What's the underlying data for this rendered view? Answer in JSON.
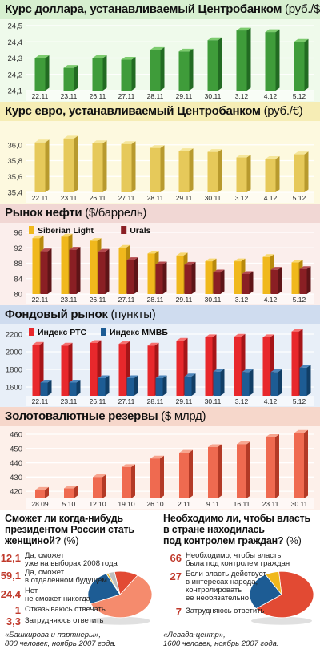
{
  "chart_data": [
    {
      "type": "bar",
      "title": "Курс доллара, устанавливаемый Центробанком",
      "unit": "(руб./$)",
      "categories": [
        "22.11",
        "23.11",
        "26.11",
        "27.11",
        "28.11",
        "29.11",
        "30.11",
        "3.12",
        "4.12",
        "5.12"
      ],
      "values": [
        24.3,
        24.24,
        24.3,
        24.29,
        24.35,
        24.34,
        24.41,
        24.47,
        24.46,
        24.4
      ],
      "ylim": [
        24.1,
        24.5
      ],
      "yticks": [
        24.1,
        24.2,
        24.3,
        24.4,
        24.5
      ],
      "colors": {
        "header": "#d7efd0",
        "bg": "#effaeb",
        "bar": "#3f9c3a",
        "bar_light": "#7ccb6e",
        "bar_dark": "#226b22"
      }
    },
    {
      "type": "bar",
      "title": "Курс евро, устанавливаемый Центробанком",
      "unit": "(руб./€)",
      "categories": [
        "22.11",
        "23.11",
        "26.11",
        "27.11",
        "28.11",
        "29.11",
        "30.11",
        "3.12",
        "4.12",
        "5.12"
      ],
      "values": [
        36.03,
        36.08,
        36.02,
        36.01,
        35.96,
        35.92,
        35.91,
        35.84,
        35.82,
        35.88
      ],
      "ylim": [
        35.4,
        36.2
      ],
      "yticks": [
        35.4,
        35.6,
        35.8,
        36.0
      ],
      "ytick_labels": [
        "35,4",
        "35,6",
        "35,8",
        "36,0"
      ],
      "colors": {
        "header": "#f6edb5",
        "bg": "#fdf9df",
        "bar": "#e6c95a",
        "bar_light": "#f5e69a",
        "bar_dark": "#b89a2e"
      }
    },
    {
      "type": "bar",
      "title": "Рынок нефти",
      "unit": "($/баррель)",
      "categories": [
        "22.11",
        "23.11",
        "26.11",
        "27.11",
        "28.11",
        "29.11",
        "30.11",
        "3.12",
        "4.12",
        "5.12"
      ],
      "series": [
        {
          "name": "Siberian Light",
          "values": [
            94.5,
            94.9,
            93.8,
            92.0,
            90.5,
            90.0,
            88.5,
            88.5,
            89.6,
            88.2
          ],
          "color": "#f0b81c",
          "light": "#f8d870",
          "dark": "#b88a0c"
        },
        {
          "name": "Urals",
          "values": [
            91.1,
            91.5,
            91.0,
            88.8,
            87.7,
            87.6,
            85.6,
            85.2,
            86.3,
            86.5
          ],
          "color": "#8a1f24",
          "light": "#b34a4e",
          "dark": "#5e1417"
        }
      ],
      "ylim": [
        80,
        96
      ],
      "yticks": [
        80,
        84,
        88,
        92,
        96
      ],
      "colors": {
        "header": "#f1d7d4",
        "bg": "#fbeeec"
      }
    },
    {
      "type": "bar",
      "title": "Фондовый рынок",
      "unit": "(пункты)",
      "categories": [
        "22.11",
        "23.11",
        "26.11",
        "27.11",
        "28.11",
        "29.11",
        "30.11",
        "3.12",
        "4.12",
        "5.12"
      ],
      "series": [
        {
          "name": "Индекс РТС",
          "values": [
            2080,
            2070,
            2100,
            2090,
            2070,
            2125,
            2165,
            2170,
            2165,
            2230
          ],
          "color": "#e8282c",
          "light": "#f6706f",
          "dark": "#a61518"
        },
        {
          "name": "Индекс ММВБ",
          "values": [
            1650,
            1650,
            1700,
            1700,
            1700,
            1720,
            1775,
            1770,
            1770,
            1820
          ],
          "color": "#1d5c94",
          "light": "#4d86bb",
          "dark": "#113e66"
        }
      ],
      "ylim": [
        1500,
        2200
      ],
      "yticks": [
        1600,
        1800,
        2000,
        2200
      ],
      "colors": {
        "header": "#cfdcef",
        "bg": "#e8eff8"
      }
    },
    {
      "type": "bar",
      "title": "Золотовалютные резервы",
      "unit": "($ млрд)",
      "categories": [
        "28.09",
        "5.10",
        "12.10",
        "19.10",
        "26.10",
        "2.11",
        "9.11",
        "16.11",
        "23.11",
        "30.11"
      ],
      "values": [
        421,
        422,
        430,
        437,
        443,
        447,
        451,
        453,
        458,
        461
      ],
      "ylim": [
        415,
        460
      ],
      "yticks": [
        420,
        430,
        440,
        450,
        460
      ],
      "colors": {
        "header": "#f6d7cb",
        "bg": "#fdf0ea",
        "bar": "#ef6a50",
        "bar_light": "#f7a58f",
        "bar_dark": "#b33a26"
      }
    },
    {
      "type": "pie",
      "title": "Сможет ли когда-нибудь президентом России стать женщиной?",
      "unit": "(%)",
      "values": [
        12.1,
        59.1,
        24.4,
        1.0,
        3.3
      ],
      "value_labels": [
        "12,1",
        "59,1",
        "24,4",
        "1",
        "3,3"
      ],
      "labels": [
        "Да, сможет уже на выборах 2008 года",
        "Да, сможет в отдаленном будущем",
        "Нет, не сможет никогда",
        "Отказываюсь отвечать",
        "Затрудняюсь ответить"
      ],
      "colors": [
        "#e24a33",
        "#f58b6d",
        "#1d5c94",
        "#f0b81c",
        "#bfbfbf"
      ],
      "source": "«Башкирова и партнеры», 800 человек, ноябрь 2007 года."
    },
    {
      "type": "pie",
      "title": "Необходимо ли, чтобы власть в стране находилась под контролем граждан?",
      "unit": "(%)",
      "values": [
        66,
        27,
        7
      ],
      "value_labels": [
        "66",
        "27",
        "7"
      ],
      "labels": [
        "Необходимо, чтобы власть была под контролем граждан",
        "Если власть действует в интересах народа, контролировать ее необязательно",
        "Затрудняюсь ответить"
      ],
      "colors": [
        "#e24a33",
        "#1d5c94",
        "#f0b81c"
      ],
      "source": "«Левада-центр», 1600 человек, ноябрь 2007 года."
    }
  ],
  "poll1": {
    "q1": "Сможет ли когда-нибудь",
    "q2": "президентом России стать",
    "q3": "женщиной?",
    "unit": "(%)",
    "items": [
      {
        "value": "12,1",
        "l1": "Да, сможет",
        "l2": "уже на выборах 2008 года"
      },
      {
        "value": "59,1",
        "l1": "Да, сможет",
        "l2": "в отдаленном будущем"
      },
      {
        "value": "24,4",
        "l1": "Нет,",
        "l2": "не сможет никогда"
      },
      {
        "value": "1",
        "l1": "Отказываюсь отвечать",
        "l2": ""
      },
      {
        "value": "3,3",
        "l1": "Затрудняюсь ответить",
        "l2": ""
      }
    ],
    "src1": "«Башкирова и партнеры»,",
    "src2": "800 человек, ноябрь 2007 года."
  },
  "poll2": {
    "q1": "Необходимо ли, чтобы власть",
    "q2": "в стране находилась",
    "q3": "под контролем граждан?",
    "unit": "(%)",
    "items": [
      {
        "value": "66",
        "l1": "Необходимо, чтобы власть",
        "l2": "была под контролем граждан",
        "l3": ""
      },
      {
        "value": "27",
        "l1": "Если власть действует",
        "l2": "в интересах народа,",
        "l3": "контролировать",
        "l4": "ее необязательно"
      },
      {
        "value": "7",
        "l1": "Затрудняюсь ответить",
        "l2": "",
        "l3": ""
      }
    ],
    "src1": "«Левада-центр»,",
    "src2": "1600 человек, ноябрь 2007 года."
  }
}
